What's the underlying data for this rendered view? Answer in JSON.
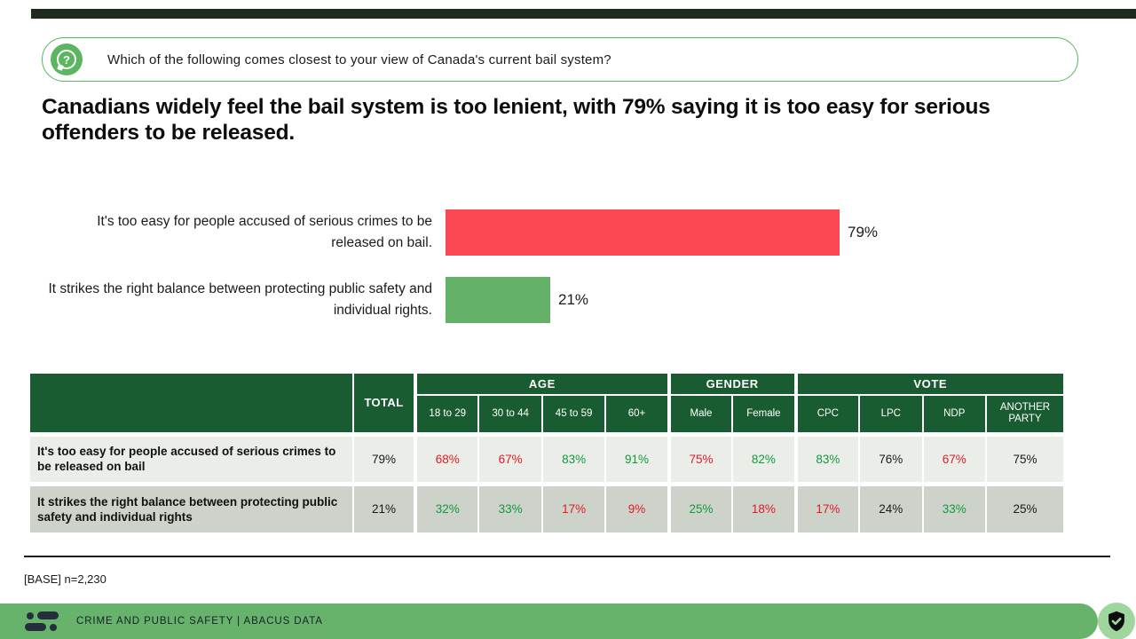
{
  "question": {
    "icon": "?",
    "text": "Which of the following comes closest to your view of Canada's current bail system?"
  },
  "headline": "Canadians widely feel the bail system is too lenient, with 79% saying it is too easy for serious offenders to be released.",
  "chart_data": [
    {
      "type": "bar",
      "orientation": "horizontal",
      "categories": [
        "It's too easy for people accused of serious crimes to be released on bail.",
        "It strikes the right balance between protecting public safety and individual rights."
      ],
      "values": [
        79,
        21
      ],
      "value_labels": [
        "79%",
        "21%"
      ],
      "colors": [
        "#FC4852",
        "#63B167"
      ],
      "xlim": [
        0,
        100
      ],
      "grid": false,
      "legend": false
    },
    {
      "type": "table",
      "total_label": "TOTAL",
      "groups": [
        {
          "label": "AGE",
          "span": 4
        },
        {
          "label": "GENDER",
          "span": 2
        },
        {
          "label": "VOTE",
          "span": 4
        }
      ],
      "columns": [
        "18 to 29",
        "30 to 44",
        "45 to 59",
        "60+",
        "Male",
        "Female",
        "CPC",
        "LPC",
        "NDP",
        "ANOTHER PARTY"
      ],
      "rows": [
        {
          "label": "It's too easy for people accused of serious crimes to be released on bail",
          "total": {
            "text": "79%",
            "tone": "dark"
          },
          "cells": [
            {
              "text": "68%",
              "tone": "red"
            },
            {
              "text": "67%",
              "tone": "red"
            },
            {
              "text": "83%",
              "tone": "green"
            },
            {
              "text": "91%",
              "tone": "green"
            },
            {
              "text": "75%",
              "tone": "red"
            },
            {
              "text": "82%",
              "tone": "green"
            },
            {
              "text": "83%",
              "tone": "green"
            },
            {
              "text": "76%",
              "tone": "dark"
            },
            {
              "text": "67%",
              "tone": "red"
            },
            {
              "text": "75%",
              "tone": "dark"
            }
          ]
        },
        {
          "label": "It strikes the right balance between protecting public safety and individual rights",
          "total": {
            "text": "21%",
            "tone": "dark"
          },
          "cells": [
            {
              "text": "32%",
              "tone": "green"
            },
            {
              "text": "33%",
              "tone": "green"
            },
            {
              "text": "17%",
              "tone": "red"
            },
            {
              "text": "9%",
              "tone": "red"
            },
            {
              "text": "25%",
              "tone": "green"
            },
            {
              "text": "18%",
              "tone": "red"
            },
            {
              "text": "17%",
              "tone": "red"
            },
            {
              "text": "24%",
              "tone": "dark"
            },
            {
              "text": "33%",
              "tone": "green"
            },
            {
              "text": "25%",
              "tone": "dark"
            }
          ]
        }
      ]
    }
  ],
  "base_note": "[BASE] n=2,230",
  "footer": {
    "title": "CRIME AND PUBLIC SAFETY  |  ABACUS DATA"
  },
  "colors": {
    "accent_green": "#5CB561",
    "bar_red": "#FC4852",
    "bar_green": "#63B167",
    "table_header_green": "#1A5C31",
    "row_light": "#EBEDE9",
    "row_dark": "#CDD3CA",
    "value_red": "#E01B22",
    "value_green": "#119A3E",
    "footer_green": "#68B36B",
    "badge_green": "#9ED69D"
  }
}
